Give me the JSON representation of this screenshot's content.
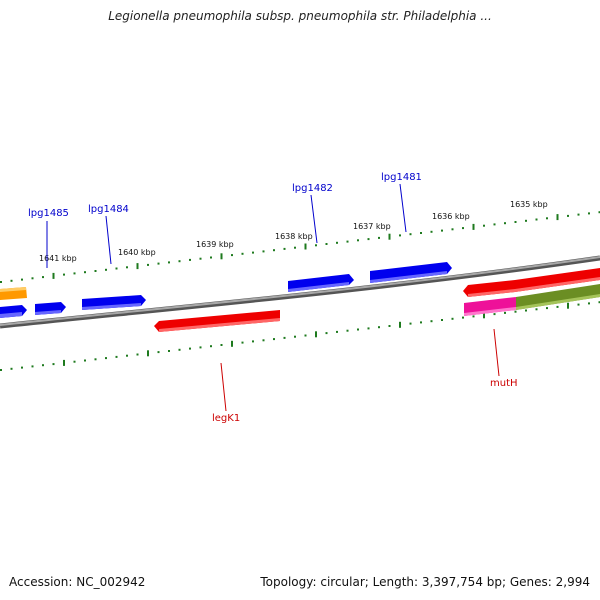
{
  "title": "Legionella pneumophila subsp. pneumophila str. Philadelphia ...",
  "footer": {
    "accession": "Accession: NC_002942",
    "summary": "Topology: circular; Length: 3,397,754 bp; Genes: 2,994"
  },
  "colors": {
    "backbone": "#808080",
    "tick": "#1e7a1e",
    "forward_label": "#0000cc",
    "reverse_label": "#cc0000",
    "gene_blue": "#0000ee",
    "gene_red": "#ee0000",
    "gene_orange": "#ff9900",
    "gene_magenta": "#ee1199",
    "gene_olive": "#6b8e23"
  },
  "scale_ticks": [
    "1641 kbp",
    "1640 kbp",
    "1639 kbp",
    "1638 kbp",
    "1637 kbp",
    "1636 kbp",
    "1635 kbp"
  ],
  "gene_labels": [
    {
      "text": "lpg1485",
      "strand": "forward"
    },
    {
      "text": "lpg1484",
      "strand": "forward"
    },
    {
      "text": "lpg1482",
      "strand": "forward"
    },
    {
      "text": "lpg1481",
      "strand": "forward"
    },
    {
      "text": "legK1",
      "strand": "reverse"
    },
    {
      "text": "mutH",
      "strand": "reverse"
    }
  ]
}
